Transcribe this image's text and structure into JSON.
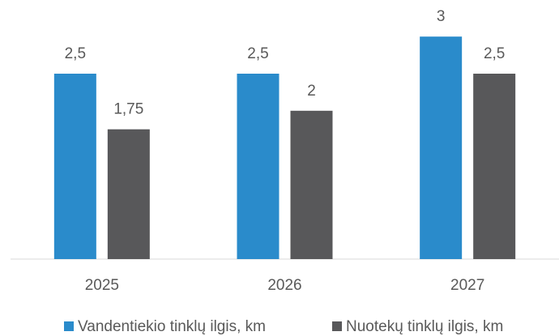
{
  "chart_data": {
    "type": "bar",
    "categories": [
      "2025",
      "2026",
      "2027"
    ],
    "series": [
      {
        "name": "Vandentiekio tinklų ilgis, km",
        "color": "#2a8bcb",
        "values": [
          2.5,
          2.5,
          3
        ],
        "value_labels": [
          "2,5",
          "2,5",
          "3"
        ]
      },
      {
        "name": "Nuotekų tinklų ilgis, km",
        "color": "#58585a",
        "values": [
          1.75,
          2,
          2.5
        ],
        "value_labels": [
          "1,75",
          "2",
          "2,5"
        ]
      }
    ]
  }
}
